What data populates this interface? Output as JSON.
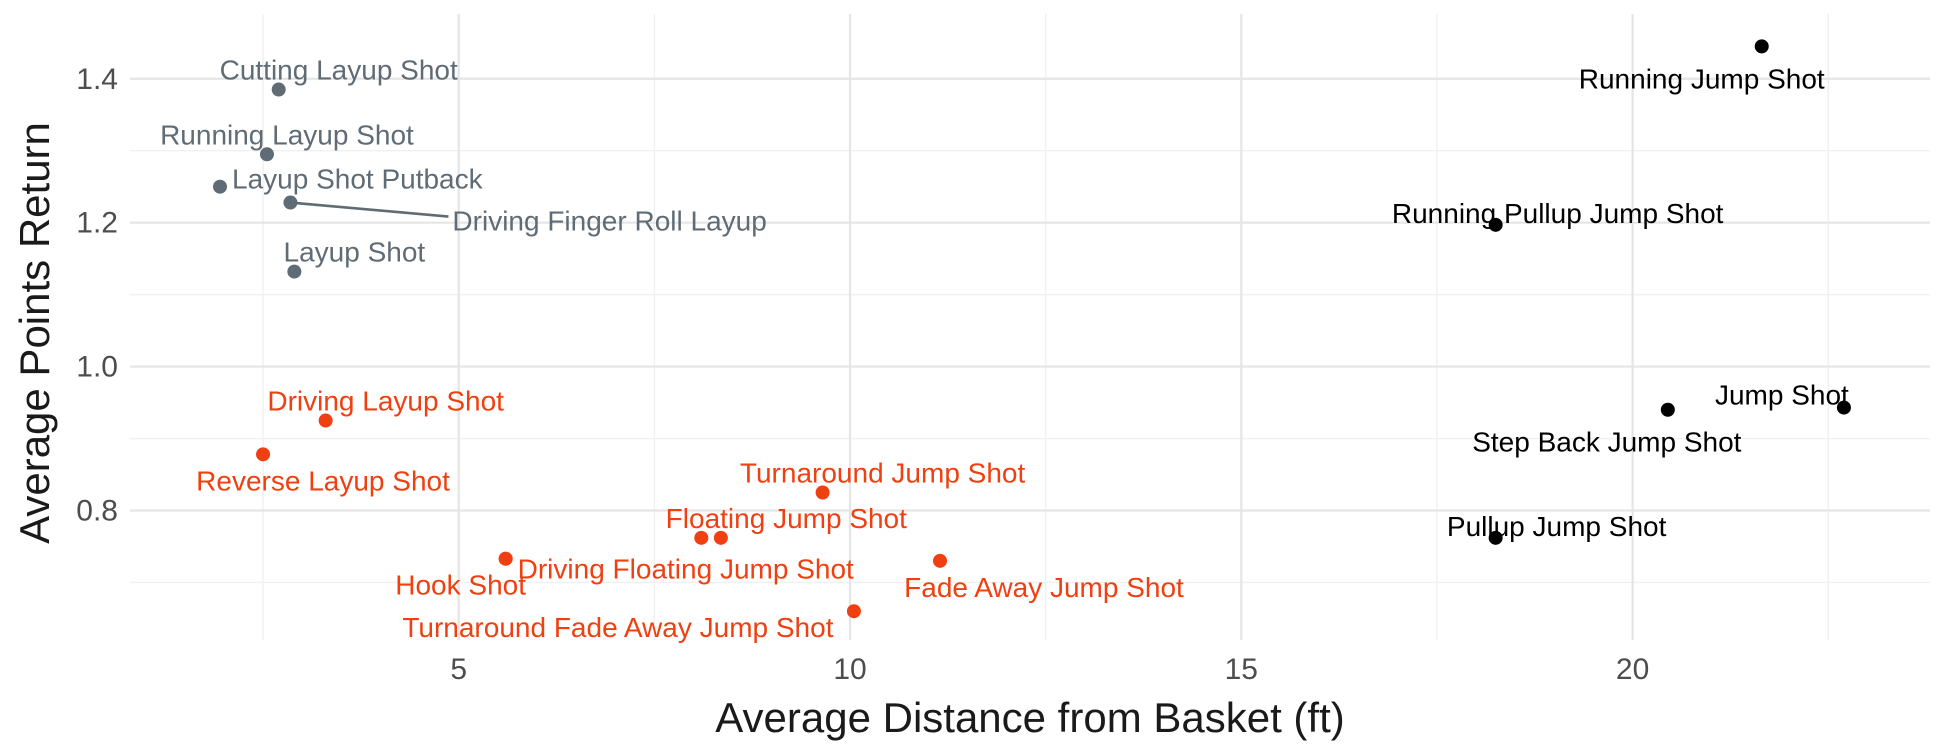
{
  "chart_data": {
    "type": "scatter",
    "xlabel": "Average Distance from Basket (ft)",
    "ylabel": "Average Points Return",
    "xlim": [
      0.8,
      23.8
    ],
    "ylim": [
      0.62,
      1.49
    ],
    "x_ticks": [
      5,
      10,
      15,
      20
    ],
    "y_ticks": [
      0.8,
      1.0,
      1.2,
      1.4
    ],
    "grid": true,
    "legend": "none",
    "colors": {
      "gray": "#5f6b75",
      "red": "#f03f10",
      "black": "#000000"
    },
    "points": [
      {
        "label": "Cutting Layup Shot",
        "x": 2.7,
        "y": 1.385,
        "group": "gray"
      },
      {
        "label": "Running Layup Shot",
        "x": 2.55,
        "y": 1.295,
        "group": "gray"
      },
      {
        "label": "Layup Shot Putback",
        "x": 1.95,
        "y": 1.25,
        "group": "gray"
      },
      {
        "label": "Driving Finger Roll Layup",
        "x": 2.85,
        "y": 1.228,
        "group": "gray"
      },
      {
        "label": "Layup Shot",
        "x": 2.9,
        "y": 1.132,
        "group": "gray"
      },
      {
        "label": "Driving Layup Shot",
        "x": 3.3,
        "y": 0.925,
        "group": "red"
      },
      {
        "label": "Reverse Layup Shot",
        "x": 2.5,
        "y": 0.878,
        "group": "red"
      },
      {
        "label": "Turnaround Jump Shot",
        "x": 9.65,
        "y": 0.825,
        "group": "red"
      },
      {
        "label": "Floating Jump Shot",
        "x": 8.1,
        "y": 0.762,
        "group": "red"
      },
      {
        "label": "",
        "x": 8.35,
        "y": 0.762,
        "group": "red"
      },
      {
        "label": "Driving Floating Jump Shot",
        "x": 5.6,
        "y": 0.733,
        "group": "red"
      },
      {
        "label": "Hook Shot",
        "x": 5.6,
        "y": 0.733,
        "group": "red"
      },
      {
        "label": "Fade Away Jump Shot",
        "x": 11.15,
        "y": 0.73,
        "group": "red"
      },
      {
        "label": "Turnaround Fade Away Jump Shot",
        "x": 10.05,
        "y": 0.66,
        "group": "red"
      },
      {
        "label": "Running Jump Shot",
        "x": 21.65,
        "y": 1.445,
        "group": "black"
      },
      {
        "label": "Running Pullup Jump Shot",
        "x": 18.25,
        "y": 1.197,
        "group": "black"
      },
      {
        "label": "Jump Shot",
        "x": 22.7,
        "y": 0.943,
        "group": "black"
      },
      {
        "label": "Step Back Jump Shot",
        "x": 20.45,
        "y": 0.94,
        "group": "black"
      },
      {
        "label": "Pullup Jump Shot",
        "x": 18.25,
        "y": 0.762,
        "group": "black"
      }
    ]
  }
}
